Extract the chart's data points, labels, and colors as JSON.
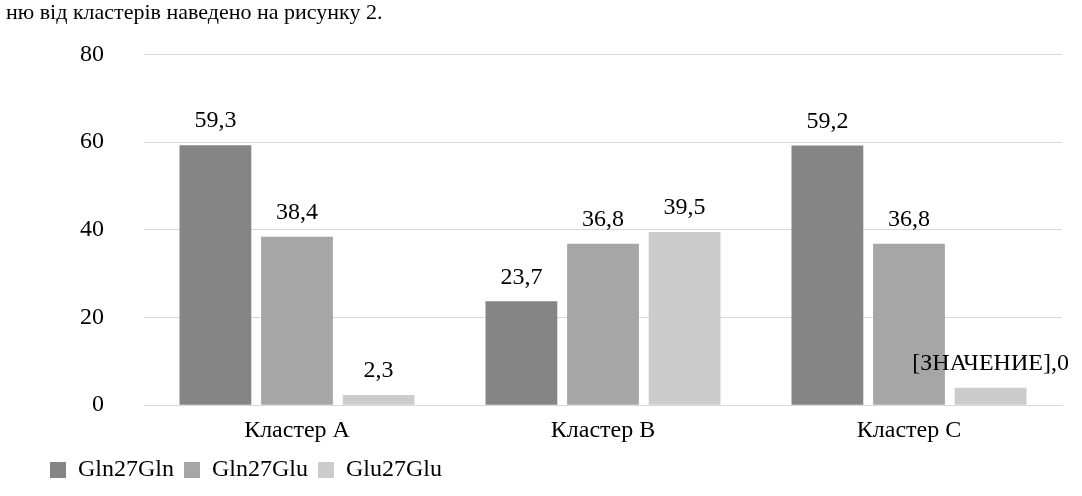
{
  "chart_data": {
    "type": "bar",
    "categories": [
      "Кластер А",
      "Кластер В",
      "Кластер С"
    ],
    "series": [
      {
        "name": "Gln27Gln",
        "color": "#858585",
        "values": [
          59.3,
          23.7,
          59.2
        ],
        "value_labels": [
          "59,3",
          "23,7",
          "59,2"
        ]
      },
      {
        "name": "Gln27Glu",
        "color": "#a6a6a6",
        "values": [
          38.4,
          36.8,
          36.8
        ],
        "value_labels": [
          "38,4",
          "36,8",
          "36,8"
        ]
      },
      {
        "name": "Glu27Glu",
        "color": "#cccccc",
        "values": [
          2.3,
          39.5,
          4
        ],
        "value_labels": [
          "2,3",
          "39,5",
          null
        ]
      }
    ],
    "ylim": [
      0,
      80
    ],
    "yticks": [
      0,
      20,
      40,
      60,
      80
    ],
    "grid": "y",
    "legend": "bottom",
    "annotations": [
      "ню від кластерів наведено на рисунку 2.",
      "[ЗНАЧЕНИЕ],0"
    ]
  }
}
